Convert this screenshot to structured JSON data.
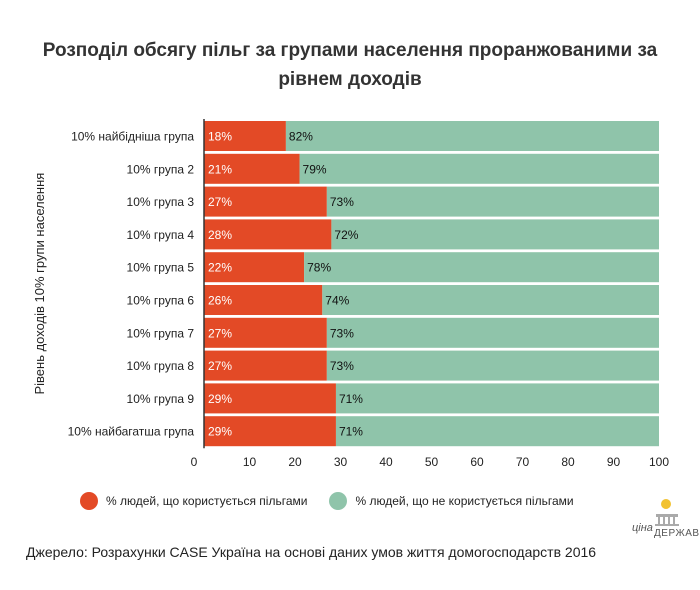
{
  "title": "Розподіл обсягу пільг за групами населення проранжованими за рівнем доходів",
  "source": "Джерело: Розрахунки CASE Україна на основі даних умов життя домогосподарств 2016",
  "logo": {
    "line1": "ціна",
    "line2": "ДЕРЖАВИ",
    "icon": "coin-building-icon"
  },
  "colors": {
    "using": "#e34a26",
    "not_using": "#8fc4aa"
  },
  "chart_data": {
    "type": "bar",
    "orientation": "horizontal",
    "stacked": true,
    "title": "Розподіл обсягу пільг за групами населення проранжованими за рівнем доходів",
    "ylabel": "Рівень доходів 10% групи населення",
    "xlabel": "",
    "xlim": [
      0,
      100
    ],
    "xticks": [
      0,
      10,
      20,
      30,
      40,
      50,
      60,
      70,
      80,
      90,
      100
    ],
    "categories": [
      "10% найбідніша група",
      "10% група 2",
      "10% група 3",
      "10% група 4",
      "10% група 5",
      "10% група 6",
      "10% група 7",
      "10% група 8",
      "10% група 9",
      "10% найбагатша група"
    ],
    "series": [
      {
        "name": "% людей, що користується пільгами",
        "color": "#e34a26",
        "values": [
          18,
          21,
          27,
          28,
          22,
          26,
          27,
          27,
          29,
          29
        ],
        "labels": [
          "18%",
          "21%",
          "27%",
          "28%",
          "22%",
          "26%",
          "27%",
          "27%",
          "29%",
          "29%"
        ]
      },
      {
        "name": "% людей, що не користується пільгами",
        "color": "#8fc4aa",
        "values": [
          82,
          79,
          73,
          72,
          78,
          74,
          73,
          73,
          71,
          71
        ],
        "labels": [
          "82%",
          "79%",
          "73%",
          "72%",
          "78%",
          "74%",
          "73%",
          "73%",
          "71%",
          "71%"
        ]
      }
    ],
    "grid": false,
    "legend_position": "bottom"
  }
}
